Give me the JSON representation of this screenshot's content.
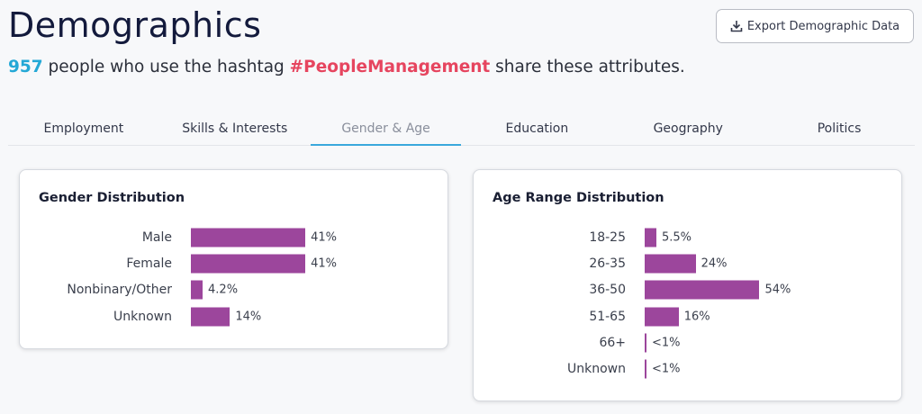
{
  "header": {
    "title": "Demographics",
    "export_label": "Export Demographic Data"
  },
  "summary": {
    "count": "957",
    "prefix": " people who use the hashtag ",
    "hashtag": "#PeopleManagement",
    "suffix": " share these attributes."
  },
  "tabs": [
    {
      "label": "Employment",
      "active": false
    },
    {
      "label": "Skills & Interests",
      "active": false
    },
    {
      "label": "Gender & Age",
      "active": true
    },
    {
      "label": "Education",
      "active": false
    },
    {
      "label": "Geography",
      "active": false
    },
    {
      "label": "Politics",
      "active": false
    }
  ],
  "colors": {
    "bar": "#9c469c",
    "count": "#24a8d6",
    "hashtag": "#e6455f",
    "tab_underline": "#3aa8dc"
  },
  "gender": {
    "title": "Gender Distribution",
    "rows": [
      {
        "label": "Male",
        "value": 41,
        "display": "41%"
      },
      {
        "label": "Female",
        "value": 41,
        "display": "41%"
      },
      {
        "label": "Nonbinary/Other",
        "value": 4.2,
        "display": "4.2%"
      },
      {
        "label": "Unknown",
        "value": 14,
        "display": "14%"
      }
    ]
  },
  "age": {
    "title": "Age Range Distribution",
    "rows": [
      {
        "label": "18-25",
        "value": 5.5,
        "display": "5.5%"
      },
      {
        "label": "26-35",
        "value": 24,
        "display": "24%"
      },
      {
        "label": "36-50",
        "value": 54,
        "display": "54%"
      },
      {
        "label": "51-65",
        "value": 16,
        "display": "16%"
      },
      {
        "label": "66+",
        "value": 0.5,
        "display": "<1%"
      },
      {
        "label": "Unknown",
        "value": 0.5,
        "display": "<1%"
      }
    ]
  }
}
